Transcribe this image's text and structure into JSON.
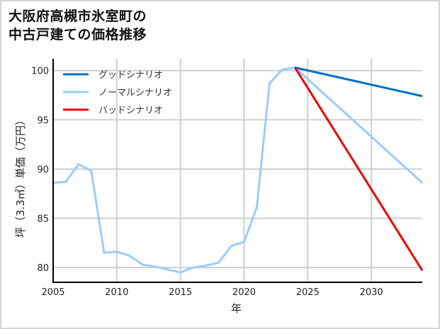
{
  "title": {
    "line1": "大阪府高槻市氷室町の",
    "line2": "中古戸建ての価格推移"
  },
  "chart_data": {
    "type": "line",
    "title": "大阪府高槻市氷室町の中古戸建ての価格推移",
    "xlabel": "年",
    "ylabel": "坪（3.3㎡）単価（万円）",
    "xlim": [
      2005,
      2034
    ],
    "ylim": [
      78.5,
      101.2
    ],
    "xticks": [
      2005,
      2010,
      2015,
      2020,
      2025,
      2030
    ],
    "yticks": [
      80,
      85,
      90,
      95,
      100
    ],
    "grid": true,
    "legend_position": "upper left",
    "series": [
      {
        "name": "グッドシナリオ",
        "color": "#0070c8",
        "x": [
          2024,
          2034
        ],
        "values": [
          100.3,
          97.4
        ]
      },
      {
        "name": "ノーマルシナリオ",
        "color": "#99ccff",
        "x": [
          2005,
          2006,
          2007,
          2008,
          2009,
          2010,
          2011,
          2012,
          2013,
          2014,
          2015,
          2016,
          2017,
          2018,
          2019,
          2020,
          2021,
          2022,
          2023,
          2024,
          2034
        ],
        "values": [
          88.6,
          88.7,
          90.5,
          89.8,
          81.5,
          81.6,
          81.2,
          80.3,
          80.1,
          79.8,
          79.5,
          80.0,
          80.2,
          80.5,
          82.2,
          82.6,
          86.1,
          98.7,
          100.1,
          100.3,
          88.6
        ]
      },
      {
        "name": "バッドシナリオ",
        "color": "#ee0000",
        "x": [
          2024,
          2034
        ],
        "values": [
          100.3,
          79.7
        ]
      }
    ]
  }
}
